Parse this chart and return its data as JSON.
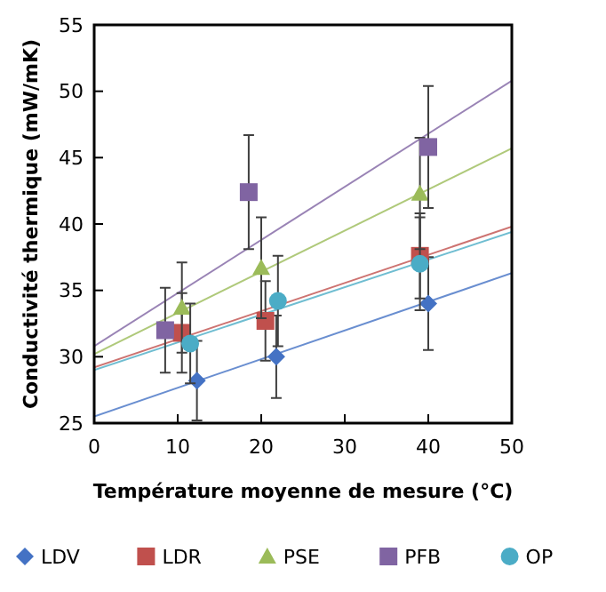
{
  "chart_data": {
    "type": "scatter",
    "xlabel": "Température moyenne de mesure (°C)",
    "ylabel": "Conductivité thermique (mW/mK)",
    "xlim": [
      0,
      50
    ],
    "xticks": [
      0,
      10,
      20,
      30,
      40,
      50
    ],
    "ylim": [
      25,
      55
    ],
    "yticks": [
      25,
      30,
      35,
      40,
      45,
      50,
      55
    ],
    "grid": false,
    "legend": "bottom",
    "series": [
      {
        "name": "LDV",
        "color": "#4472c4",
        "marker": "diamond",
        "x": [
          12.3,
          21.8,
          40
        ],
        "values": [
          28.2,
          30,
          34
        ],
        "errors": [
          3,
          3.1,
          3.5
        ]
      },
      {
        "name": "LDR",
        "color": "#c0504d",
        "marker": "square",
        "x": [
          10.5,
          20.5,
          39
        ],
        "values": [
          31.8,
          32.7,
          37.6
        ],
        "errors": [
          3,
          3,
          3.2
        ]
      },
      {
        "name": "PSE",
        "color": "#9bbb59",
        "marker": "triangle",
        "x": [
          10.5,
          20,
          39
        ],
        "values": [
          33.7,
          36.7,
          42.3
        ],
        "errors": [
          3.4,
          3.8,
          4.2
        ]
      },
      {
        "name": "PFB",
        "color": "#8064a2",
        "marker": "square",
        "x": [
          8.5,
          18.5,
          40
        ],
        "values": [
          32,
          42.4,
          45.8
        ],
        "errors": [
          3.2,
          4.3,
          4.6
        ]
      },
      {
        "name": "OP",
        "color": "#4bacc6",
        "marker": "circle",
        "x": [
          11.5,
          22,
          39
        ],
        "values": [
          31,
          34.2,
          37
        ],
        "errors": [
          3,
          3.4,
          3.5
        ]
      },
      {
        "type": "line",
        "color": "#4472c4",
        "x": [
          0,
          50
        ],
        "values": [
          25.5,
          36.3
        ]
      },
      {
        "type": "line",
        "color": "#c0504d",
        "x": [
          0,
          50
        ],
        "values": [
          29.2,
          39.8
        ]
      },
      {
        "type": "line",
        "color": "#9bbb59",
        "x": [
          0,
          50
        ],
        "values": [
          30.2,
          45.7
        ]
      },
      {
        "type": "line",
        "color": "#8064a2",
        "x": [
          0,
          50
        ],
        "values": [
          30.8,
          50.8
        ]
      },
      {
        "type": "line",
        "color": "#4bacc6",
        "x": [
          0,
          50
        ],
        "values": [
          29,
          39.4
        ]
      }
    ]
  }
}
